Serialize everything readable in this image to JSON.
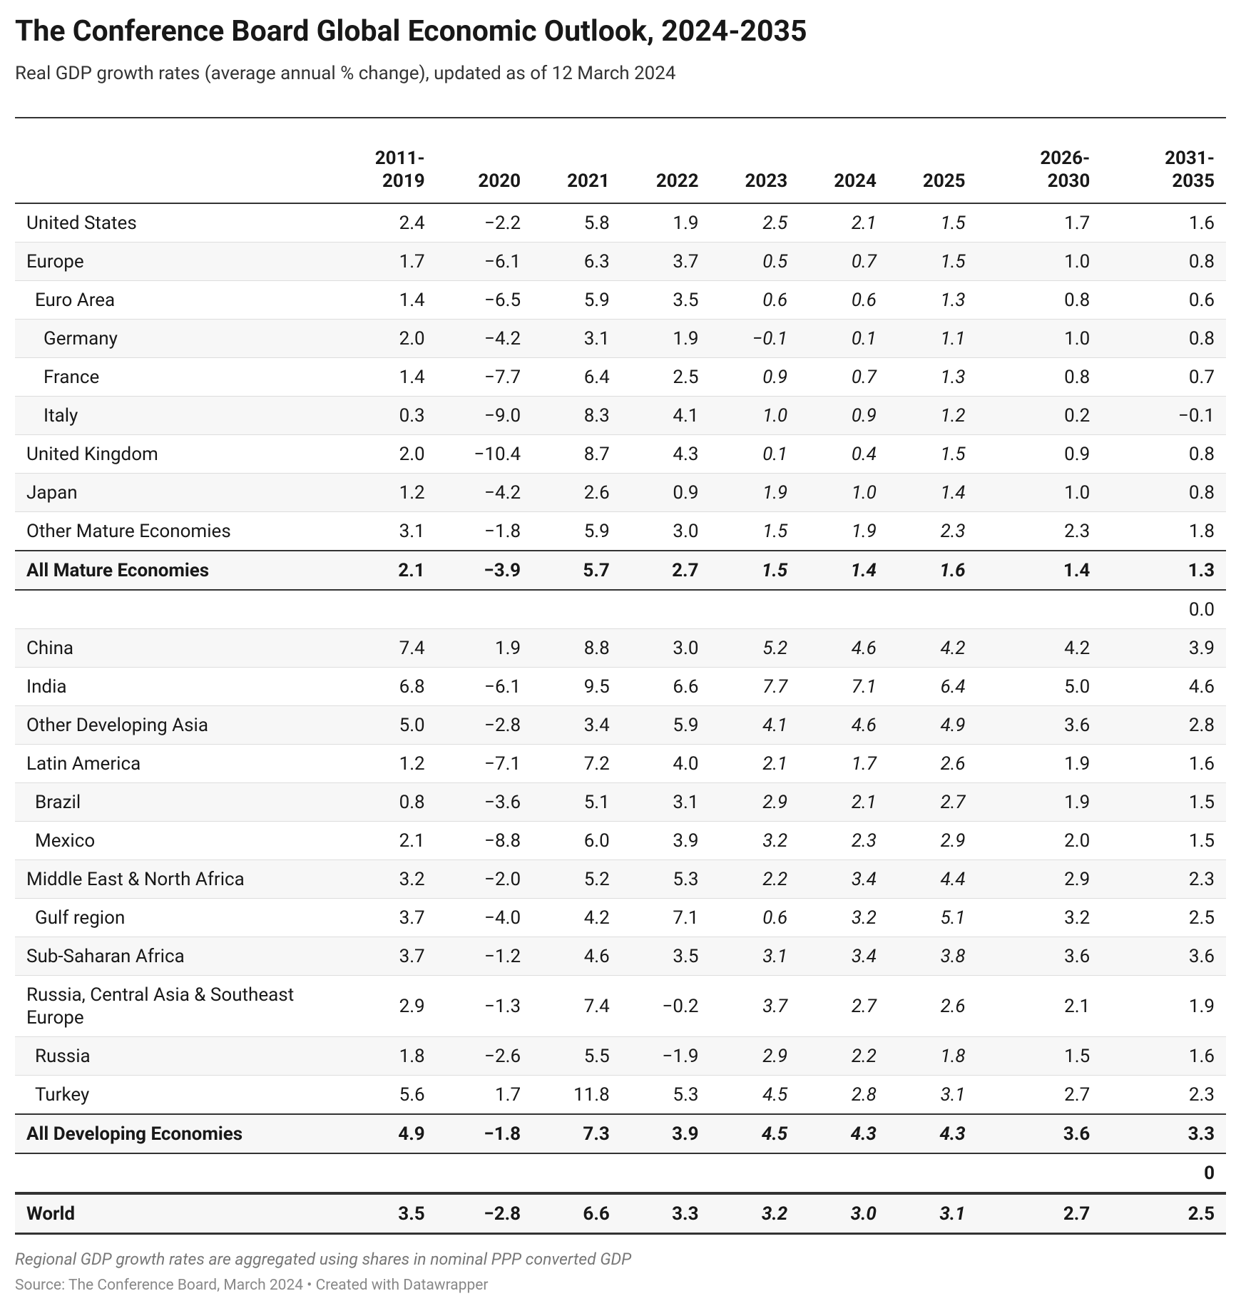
{
  "header": {
    "title": "The Conference Board Global Economic Outlook, 2024-2035",
    "subtitle": "Real GDP growth rates (average annual % change), updated as of 12 March 2024"
  },
  "table": {
    "columns": [
      "2011-2019",
      "2020",
      "2021",
      "2022",
      "2023",
      "2024",
      "2025",
      "2026-2030",
      "2031-2035"
    ],
    "rows": [
      [
        "United States",
        "2.4",
        "−2.2",
        "5.8",
        "1.9",
        "2.5",
        "2.1",
        "1.5",
        "1.7",
        "1.6"
      ],
      [
        "Europe",
        "1.7",
        "−6.1",
        "6.3",
        "3.7",
        "0.5",
        "0.7",
        "1.5",
        "1.0",
        "0.8"
      ],
      [
        "Euro Area",
        "1.4",
        "−6.5",
        "5.9",
        "3.5",
        "0.6",
        "0.6",
        "1.3",
        "0.8",
        "0.6"
      ],
      [
        "Germany",
        "2.0",
        "−4.2",
        "3.1",
        "1.9",
        "−0.1",
        "0.1",
        "1.1",
        "1.0",
        "0.8"
      ],
      [
        "France",
        "1.4",
        "−7.7",
        "6.4",
        "2.5",
        "0.9",
        "0.7",
        "1.3",
        "0.8",
        "0.7"
      ],
      [
        "Italy",
        "0.3",
        "−9.0",
        "8.3",
        "4.1",
        "1.0",
        "0.9",
        "1.2",
        "0.2",
        "−0.1"
      ],
      [
        "United Kingdom",
        "2.0",
        "−10.4",
        "8.7",
        "4.3",
        "0.1",
        "0.4",
        "1.5",
        "0.9",
        "0.8"
      ],
      [
        "Japan",
        "1.2",
        "−4.2",
        "2.6",
        "0.9",
        "1.9",
        "1.0",
        "1.4",
        "1.0",
        "0.8"
      ],
      [
        "Other Mature Economies",
        "3.1",
        "−1.8",
        "5.9",
        "3.0",
        "1.5",
        "1.9",
        "2.3",
        "2.3",
        "1.8"
      ],
      [
        "All Mature Economies",
        "2.1",
        "−3.9",
        "5.7",
        "2.7",
        "1.5",
        "1.4",
        "1.6",
        "1.4",
        "1.3"
      ],
      [
        null,
        null,
        null,
        null,
        null,
        null,
        null,
        null,
        null,
        "0.0"
      ],
      [
        "China",
        "7.4",
        "1.9",
        "8.8",
        "3.0",
        "5.2",
        "4.6",
        "4.2",
        "4.2",
        "3.9"
      ],
      [
        "India",
        "6.8",
        "−6.1",
        "9.5",
        "6.6",
        "7.7",
        "7.1",
        "6.4",
        "5.0",
        "4.6"
      ],
      [
        "Other Developing Asia",
        "5.0",
        "−2.8",
        "3.4",
        "5.9",
        "4.1",
        "4.6",
        "4.9",
        "3.6",
        "2.8"
      ],
      [
        "Latin America",
        "1.2",
        "−7.1",
        "7.2",
        "4.0",
        "2.1",
        "1.7",
        "2.6",
        "1.9",
        "1.6"
      ],
      [
        "Brazil",
        "0.8",
        "−3.6",
        "5.1",
        "3.1",
        "2.9",
        "2.1",
        "2.7",
        "1.9",
        "1.5"
      ],
      [
        "Mexico",
        "2.1",
        "−8.8",
        "6.0",
        "3.9",
        "3.2",
        "2.3",
        "2.9",
        "2.0",
        "1.5"
      ],
      [
        "Middle East & North Africa",
        "3.2",
        "−2.0",
        "5.2",
        "5.3",
        "2.2",
        "3.4",
        "4.4",
        "2.9",
        "2.3"
      ],
      [
        "Gulf region",
        "3.7",
        "−4.0",
        "4.2",
        "7.1",
        "0.6",
        "3.2",
        "5.1",
        "3.2",
        "2.5"
      ],
      [
        "Sub-Saharan Africa",
        "3.7",
        "−1.2",
        "4.6",
        "3.5",
        "3.1",
        "3.4",
        "3.8",
        "3.6",
        "3.6"
      ],
      [
        "Russia, Central Asia & Southeast Europe",
        "2.9",
        "−1.3",
        "7.4",
        "−0.2",
        "3.7",
        "2.7",
        "2.6",
        "2.1",
        "1.9"
      ],
      [
        "Russia",
        "1.8",
        "−2.6",
        "5.5",
        "−1.9",
        "2.9",
        "2.2",
        "1.8",
        "1.5",
        "1.6"
      ],
      [
        "Turkey",
        "5.6",
        "1.7",
        "11.8",
        "5.3",
        "4.5",
        "2.8",
        "3.1",
        "2.7",
        "2.3"
      ],
      [
        "All Developing Economies",
        "4.9",
        "−1.8",
        "7.3",
        "3.9",
        "4.5",
        "4.3",
        "4.3",
        "3.6",
        "3.3"
      ],
      [
        null,
        null,
        null,
        null,
        null,
        null,
        null,
        null,
        null,
        "0"
      ],
      [
        "World",
        "3.5",
        "−2.8",
        "6.6",
        "3.3",
        "3.2",
        "3.0",
        "3.1",
        "2.7",
        "2.5"
      ]
    ]
  },
  "footer": {
    "note": "Regional GDP growth rates are aggregated using shares in nominal PPP converted GDP",
    "source": "Source: The Conference Board, March 2024 • Created with Datawrapper"
  }
}
